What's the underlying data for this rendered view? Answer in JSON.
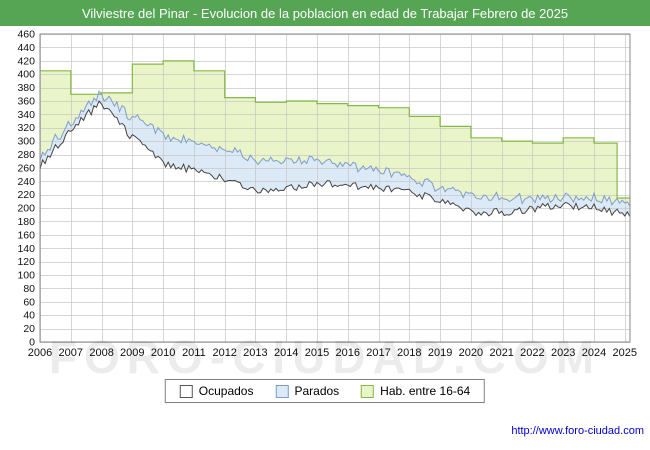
{
  "title": "Vilviestre del Pinar - Evolucion de la poblacion en edad de Trabajar Febrero de 2025",
  "watermark": "FORO-CIUDAD.COM",
  "footer_url": "http://www.foro-ciudad.com",
  "colors": {
    "title_bg": "#55a555",
    "grid": "#c4c4c4",
    "plot_border": "#888888",
    "url_text": "#0000cc"
  },
  "legend": [
    {
      "label": "Ocupados",
      "color": "#ffffff",
      "border": "#555555"
    },
    {
      "label": "Parados",
      "color": "#dce9f7",
      "border": "#7e9ccb"
    },
    {
      "label": "Hab. entre 16-64",
      "color": "#e9f5c9",
      "border": "#86b944"
    }
  ],
  "chart_data": {
    "type": "area",
    "title": "Vilviestre del Pinar - Evolucion de la poblacion en edad de Trabajar Febrero de 2025",
    "x_ticks": [
      2006,
      2007,
      2008,
      2009,
      2010,
      2011,
      2012,
      2013,
      2014,
      2015,
      2016,
      2017,
      2018,
      2019,
      2020,
      2021,
      2022,
      2023,
      2024,
      2025
    ],
    "x_range": [
      2006,
      2025.17
    ],
    "ylim": [
      0,
      460
    ],
    "ytick_step": 20,
    "grid": true,
    "legend_position": "bottom",
    "series": [
      {
        "name": "Hab. entre 16-64",
        "style": "step",
        "fill": "#e9f5c9",
        "line": "#86b944",
        "x": [
          2006,
          2007,
          2008,
          2009,
          2010,
          2011,
          2012,
          2013,
          2014,
          2015,
          2016,
          2017,
          2018,
          2019,
          2020,
          2021,
          2022,
          2023,
          2024,
          2024.75
        ],
        "values": [
          405,
          370,
          372,
          415,
          420,
          405,
          365,
          358,
          360,
          356,
          353,
          350,
          337,
          322,
          305,
          300,
          297,
          305,
          297,
          215
        ]
      },
      {
        "name": "Parados",
        "style": "band-stacked-on-ocupados",
        "fill": "#dce9f7",
        "line": "#7e9ccb",
        "x": [
          2006,
          2007,
          2008,
          2009,
          2010,
          2011,
          2012,
          2013,
          2014,
          2015,
          2016,
          2017,
          2018,
          2019,
          2020,
          2021,
          2022,
          2023,
          2024,
          2025
        ],
        "values": [
          14,
          10,
          12,
          30,
          42,
          40,
          45,
          46,
          42,
          36,
          30,
          26,
          22,
          18,
          24,
          22,
          16,
          12,
          14,
          17
        ]
      },
      {
        "name": "Ocupados",
        "style": "jagged-monthly",
        "fill": "#ffffff",
        "line": "#444444",
        "x": [
          2006,
          2007,
          2008,
          2009,
          2010,
          2011,
          2012,
          2013,
          2014,
          2015,
          2016,
          2017,
          2018,
          2019,
          2020,
          2021,
          2022,
          2023,
          2024,
          2025
        ],
        "values": [
          262,
          318,
          358,
          305,
          268,
          257,
          244,
          224,
          228,
          238,
          234,
          229,
          223,
          212,
          195,
          194,
          199,
          204,
          201,
          190
        ]
      }
    ]
  }
}
